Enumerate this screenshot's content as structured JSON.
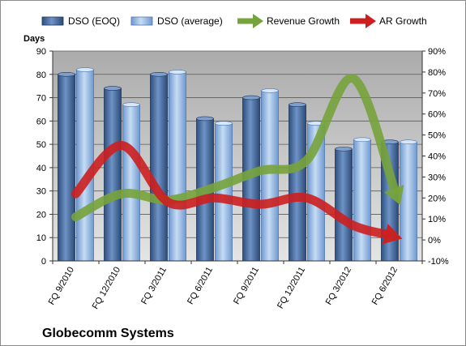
{
  "chart_data": {
    "type": "bar",
    "title": "Globecomm Systems",
    "ylabel": "Days",
    "categories": [
      "FQ 9/2010",
      "FQ 12/2010",
      "FQ 3/2011",
      "FQ 6/2011",
      "FQ 9/2011",
      "FQ 12/2011",
      "FQ 3/2012",
      "FQ 6/2012"
    ],
    "ylim": [
      0,
      90
    ],
    "yticks": [
      "0",
      "10",
      "20",
      "30",
      "40",
      "50",
      "60",
      "70",
      "80",
      "90"
    ],
    "y2lim": [
      -10,
      90
    ],
    "y2ticks": [
      "-10%",
      "0%",
      "10%",
      "20%",
      "30%",
      "40%",
      "50%",
      "60%",
      "70%",
      "80%",
      "90%"
    ],
    "series": [
      {
        "name": "DSO (EOQ)",
        "type": "bar",
        "axis": "left",
        "color": "#4a6fa5",
        "values": [
          80,
          74,
          80,
          61,
          70,
          67,
          48,
          51
        ]
      },
      {
        "name": "DSO (average)",
        "type": "bar",
        "axis": "left",
        "color": "#8fb4e3",
        "values": [
          82,
          67,
          81,
          59,
          73,
          59,
          52,
          51
        ]
      },
      {
        "name": "Revenue Growth",
        "type": "line",
        "axis": "right",
        "color": "#77a33c",
        "values": [
          11,
          22,
          19,
          25,
          33,
          38,
          77,
          18
        ]
      },
      {
        "name": "AR Growth",
        "type": "line",
        "axis": "right",
        "color": "#cc1f1f",
        "values": [
          22,
          45,
          18,
          20,
          17,
          20,
          7,
          1
        ]
      }
    ],
    "grid": true,
    "legend": "top"
  }
}
